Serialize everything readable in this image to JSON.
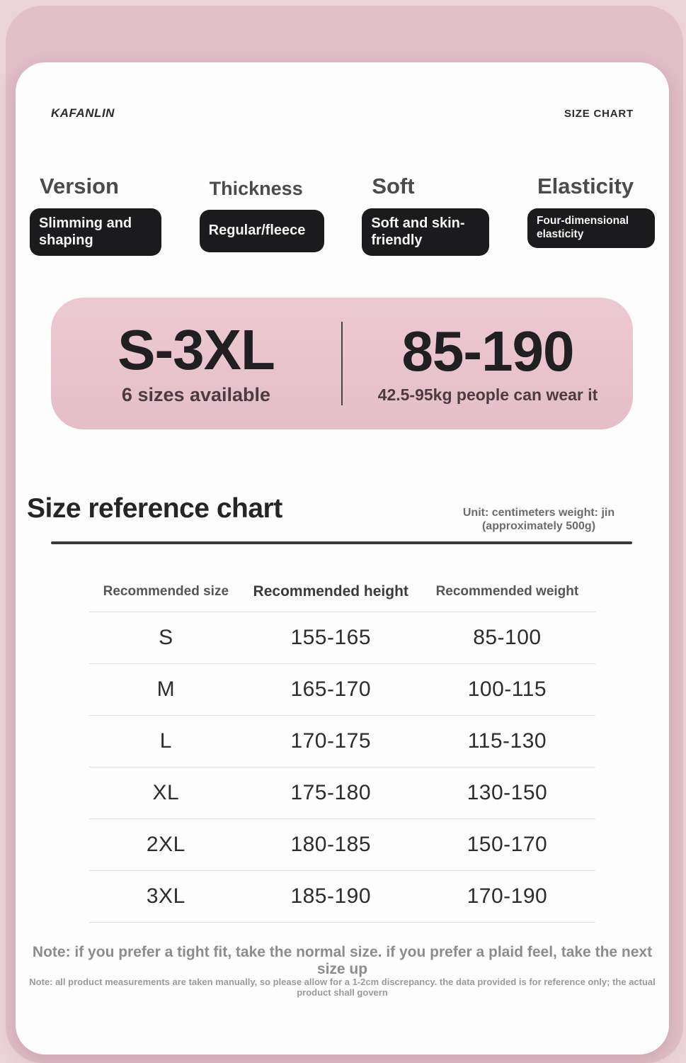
{
  "header": {
    "brand": "KAFANLIN",
    "page_label": "SIZE CHART"
  },
  "features": [
    {
      "title": "Version",
      "value": "Slimming and shaping"
    },
    {
      "title": "Thickness",
      "value": "Regular/fleece"
    },
    {
      "title": "Soft",
      "value": "Soft and skin-friendly"
    },
    {
      "title": "Elasticity",
      "value": "Four-dimensional elasticity"
    }
  ],
  "banner": {
    "left": {
      "big": "S-3XL",
      "sub": "6 sizes available"
    },
    "right": {
      "big": "85-190",
      "sub": "42.5-95kg people can wear it"
    }
  },
  "size_chart": {
    "title": "Size reference chart",
    "unit_line1": "Unit: centimeters weight: jin",
    "unit_line2": "(approximately 500g)",
    "columns": [
      "Recommended size",
      "Recommended height",
      "Recommended weight"
    ],
    "rows": [
      {
        "size": "S",
        "height": "155-165",
        "weight": "85-100"
      },
      {
        "size": "M",
        "height": "165-170",
        "weight": "100-115"
      },
      {
        "size": "L",
        "height": "170-175",
        "weight": "115-130"
      },
      {
        "size": "XL",
        "height": "175-180",
        "weight": "130-150"
      },
      {
        "size": "2XL",
        "height": "180-185",
        "weight": "150-170"
      },
      {
        "size": "3XL",
        "height": "185-190",
        "weight": "170-190"
      }
    ]
  },
  "chart_data": {
    "type": "table",
    "title": "Size reference chart",
    "columns": [
      "Recommended size",
      "Recommended height",
      "Recommended weight"
    ],
    "rows": [
      [
        "S",
        "155-165",
        "85-100"
      ],
      [
        "M",
        "165-170",
        "100-115"
      ],
      [
        "L",
        "170-175",
        "115-130"
      ],
      [
        "XL",
        "175-180",
        "130-150"
      ],
      [
        "2XL",
        "180-185",
        "150-170"
      ],
      [
        "3XL",
        "185-190",
        "170-190"
      ]
    ]
  },
  "notes": {
    "primary": "Note: if you prefer a tight fit, take the normal size. if you prefer a plaid feel, take the next size up",
    "secondary": "Note: all product measurements are taken manually, so please allow for a 1-2cm discrepancy. the data provided is for reference only; the actual product shall govern"
  },
  "colors": {
    "page_background": "#ecd3d9",
    "background_layer": "#e2bfc9",
    "card_background": "#fdfdfe",
    "banner_pink": "#eac5ce",
    "pill_black": "#1b1b1d",
    "banner_subtitle": "#4e3a42",
    "text_dark": "#2d2d2f",
    "text_gray": "#8c8c8e"
  }
}
